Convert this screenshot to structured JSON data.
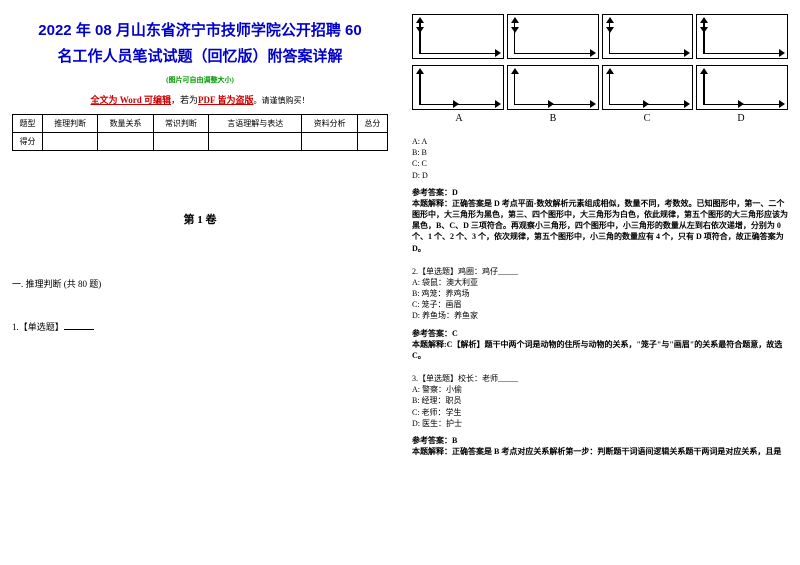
{
  "header": {
    "title_line1": "2022 年 08 月山东省济宁市技师学院公开招聘 60",
    "title_line2": "名工作人员笔试试题（回忆版）附答案详解",
    "subtitle": "(图片可自由调整大小)",
    "edit_prefix": "全文为 Word 可编辑",
    "edit_mid": "，若为",
    "edit_suffix": "PDF 皆为盗版",
    "edit_tail": "。请谨慎购买！"
  },
  "score_table": {
    "row1": [
      "题型",
      "推理判断",
      "数量关系",
      "常识判断",
      "言语理解与表达",
      "资料分析",
      "总分"
    ],
    "row2_label": "得分"
  },
  "volume": "第 1 卷",
  "section1": "一. 推理判断 (共 80 题)",
  "q1": {
    "label": "1.【单选题】",
    "blank": "_____"
  },
  "figures": {
    "labels": [
      "A",
      "B",
      "C",
      "D"
    ],
    "row_count": 2,
    "col_count": 4,
    "axis_color": "#000000",
    "border_color": "#000000"
  },
  "options1": {
    "A": "A: A",
    "B": "B: B",
    "C": "C: C",
    "D": "D: D"
  },
  "answer1": {
    "label": "参考答案：D",
    "explanation": "本题解释：正确答案是 D 考点平面-数效解析元素组成相似，数量不同，考数效。已知图形中，第一、二个图形中，大三角形为黑色，第三、四个图形中，大三角形为白色，依此规律，第五个图形的大三角形应该为黑色，B、C、D 三项符合。再观察小三角形，四个图形中，小三角形的数量从左到右依次递增，分别为 0 个、1 个、2 个、3 个，依次规律，第五个图形中，小三角的数量应有 4 个，只有 D 项符合，故正确答案为 D。"
  },
  "q2": {
    "stem": "2.【单选题】鸡圈：鸡仔_____",
    "A": "A: 袋鼠：澳大利亚",
    "B": "B: 鸡笼：养鸡场",
    "C": "C: 笼子：画眉",
    "D": "D: 养鱼场：养鱼家",
    "answer_label": "参考答案：C",
    "explanation": "本题解释:C【解析】题干中两个词是动物的住所与动物的关系，\"笼子\"与\"画眉\"的关系最符合题意，故选 C。"
  },
  "q3": {
    "stem": "3.【单选题】校长：老师_____",
    "A": "A: 警察：小偷",
    "B": "B: 经理：职员",
    "C": "C: 老师：学生",
    "D": "D: 医生：护士",
    "answer_label": "参考答案：B",
    "explanation": "本题解释：正确答案是 B 考点对应关系解析第一步：判断题干词语间逻辑关系题干两词是对应关系，且是"
  },
  "colors": {
    "title": "#0000cc",
    "subtitle": "#009900",
    "emphasis": "#cc0000",
    "text": "#000000",
    "background": "#ffffff"
  },
  "typography": {
    "title_fontsize": 15,
    "body_fontsize": 9,
    "small_fontsize": 8
  }
}
